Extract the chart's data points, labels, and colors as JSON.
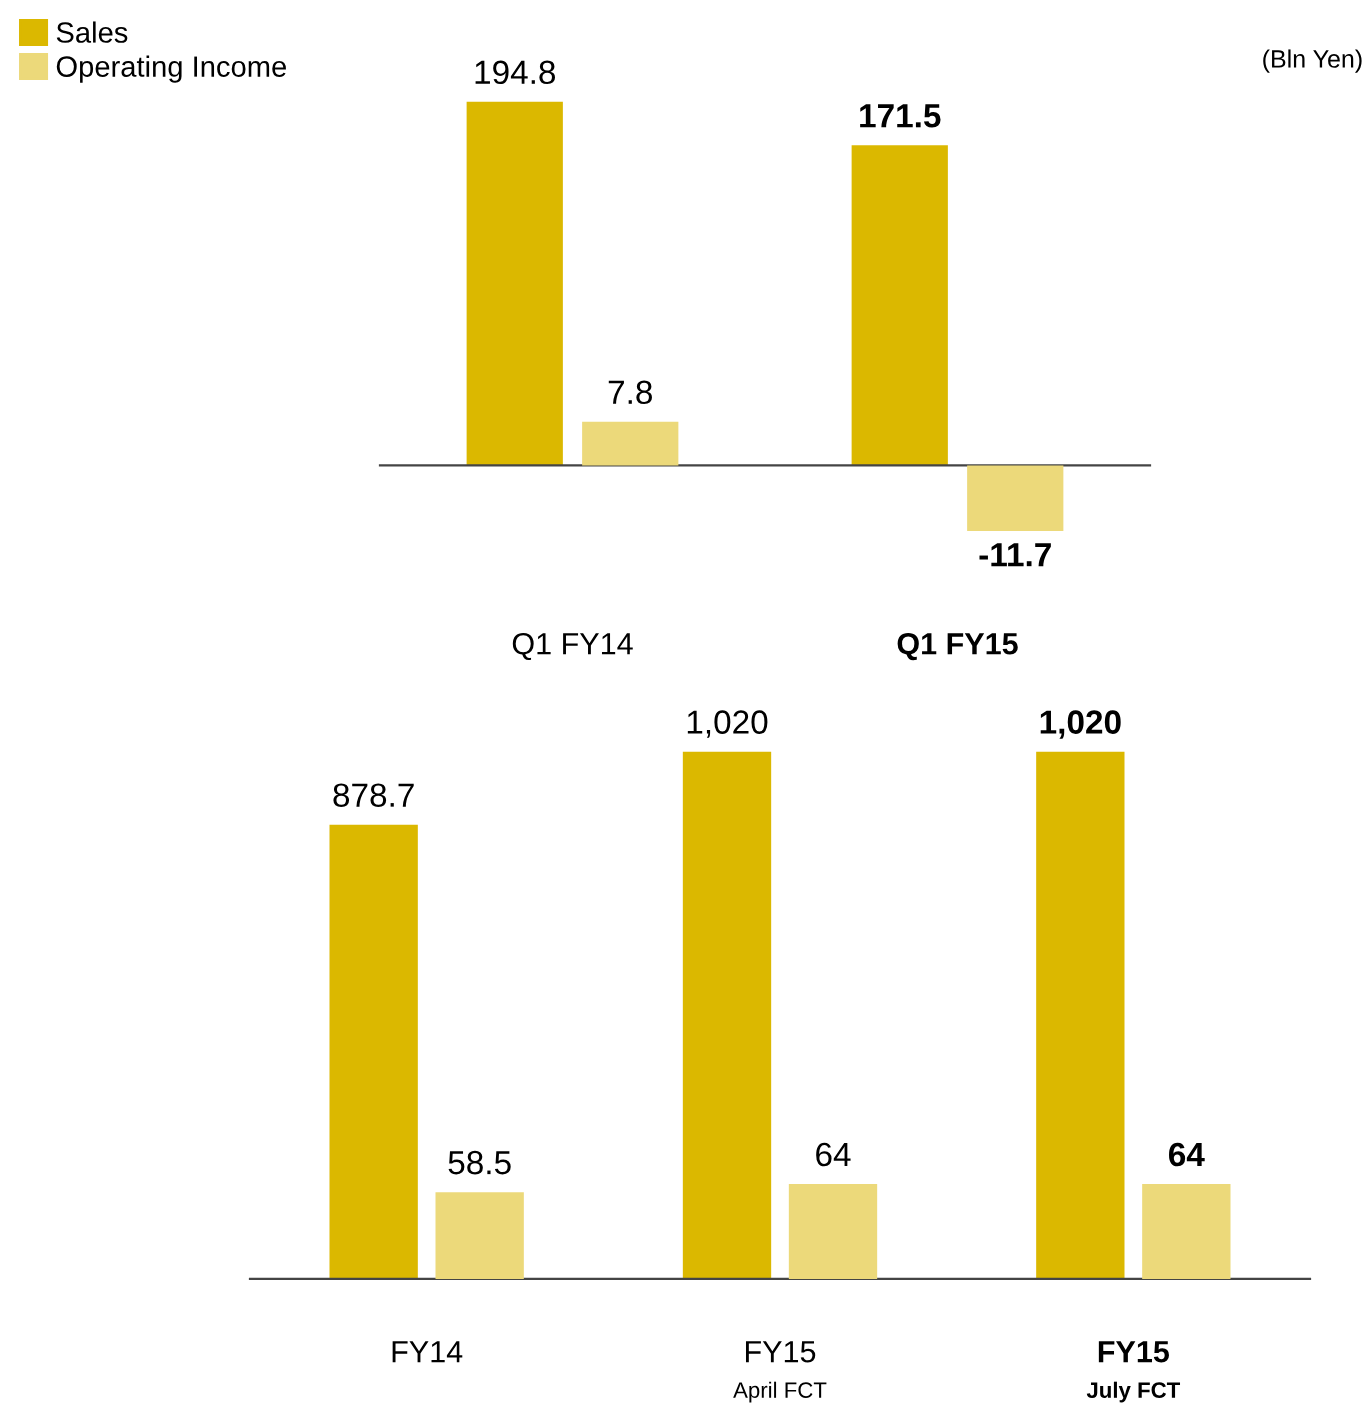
{
  "chart_data": [
    {
      "type": "bar",
      "categories": [
        "Q1 FY14",
        "Q1 FY15"
      ],
      "legend": "top left",
      "annotations": [
        "(Bln Yen)"
      ],
      "grid": false,
      "series": [
        {
          "name": "Sales",
          "color": "#dbb800",
          "values": [
            194.8,
            171.5
          ],
          "value_labels": [
            "194.8",
            "171.5"
          ]
        },
        {
          "name": "Operating Income",
          "color": "#ecd97a",
          "axis": "y2",
          "values": [
            7.8,
            -11.7
          ],
          "value_labels": [
            "7.8",
            "-11.7"
          ]
        }
      ]
    },
    {
      "type": "bar",
      "categories": [
        "FY14",
        "FY15\nApril FCT",
        "FY15\nJuly FCT"
      ],
      "grid": false,
      "series": [
        {
          "color": "#dbb800",
          "values": [
            878.7,
            1020,
            1020
          ],
          "value_labels": [
            "878.7",
            "1,020",
            "1,020"
          ]
        },
        {
          "color": "#ecd97a",
          "axis": "y2",
          "values": [
            58.5,
            64,
            64
          ],
          "value_labels": [
            "58.5",
            "64",
            "64"
          ]
        }
      ]
    }
  ]
}
